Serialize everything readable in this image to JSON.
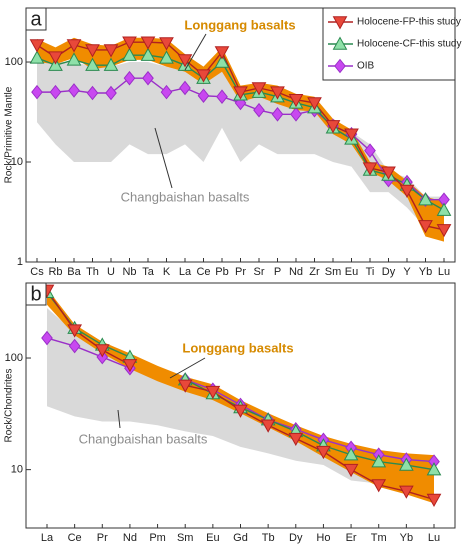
{
  "chart_data": [
    {
      "type": "line",
      "panel": "a",
      "ylabel": "Rock/Primitive Mantle",
      "yscale": "log",
      "ylim": [
        1,
        347
      ],
      "yticks": [
        1,
        10,
        100
      ],
      "legend": "upper right",
      "categories": [
        "Cs",
        "Rb",
        "Ba",
        "Th",
        "U",
        "Nb",
        "Ta",
        "K",
        "La",
        "Ce",
        "Pb",
        "Pr",
        "Sr",
        "P",
        "Nd",
        "Zr",
        "Sm",
        "Eu",
        "Ti",
        "Dy",
        "Y",
        "Yb",
        "Lu"
      ],
      "bands": [
        {
          "name": "Changbaishan basalts",
          "color": "#d9d9d9",
          "label_color": "#8c8c8c",
          "upper": [
            120,
            100,
            100,
            90,
            90,
            100,
            100,
            90,
            80,
            60,
            110,
            45,
            55,
            40,
            38,
            40,
            25,
            20,
            15,
            8,
            7,
            4.5,
            4.5
          ],
          "lower": [
            25,
            15,
            10,
            10,
            10,
            15,
            12,
            12,
            15,
            10,
            22,
            10,
            15,
            12,
            12,
            12,
            10,
            9,
            5,
            5,
            3.5,
            2.2,
            1.8
          ]
        },
        {
          "name": "Longgang basalts",
          "color": "#f08c00",
          "label_color": "#d68a00",
          "upper": [
            170,
            140,
            175,
            150,
            145,
            175,
            175,
            170,
            120,
            90,
            140,
            58,
            62,
            58,
            48,
            45,
            27,
            21,
            10,
            9,
            6.5,
            4.5,
            4
          ],
          "lower": [
            100,
            95,
            110,
            85,
            90,
            105,
            105,
            90,
            80,
            60,
            80,
            40,
            45,
            38,
            33,
            32,
            19,
            15,
            8,
            6.5,
            4.5,
            1.8,
            1.6
          ]
        }
      ],
      "series": [
        {
          "name": "OIB",
          "color": "#9a30c8",
          "marker_fill": "#c848f0",
          "marker": "diamond",
          "values": [
            50,
            50,
            52,
            49,
            49,
            69,
            69,
            50,
            55,
            46,
            45,
            39,
            33,
            30,
            30,
            33,
            23,
            19,
            13,
            6.6,
            6.3,
            4.2,
            4.2
          ]
        },
        {
          "name": "Holocene-CF-this study",
          "color": "#2a8a50",
          "marker_fill": "#8ee0a8",
          "marker": "triangle-up",
          "values": [
            110,
            93,
            105,
            93,
            93,
            117,
            117,
            110,
            93,
            69,
            100,
            47,
            50,
            45,
            39,
            35,
            22,
            17,
            8.3,
            7.4,
            5.9,
            4.2,
            3.3
          ]
        },
        {
          "name": "Holocene-FP-this study",
          "color": "#b02020",
          "marker_fill": "#e8483a",
          "marker": "triangle-down",
          "values": [
            148,
            112,
            148,
            132,
            132,
            158,
            158,
            155,
            105,
            74,
            126,
            50,
            55,
            50,
            42,
            39,
            23,
            19,
            8.7,
            7.9,
            5.2,
            2.3,
            2.1
          ]
        }
      ]
    },
    {
      "type": "line",
      "panel": "b",
      "ylabel": "Rock/Chondrites",
      "yscale": "log",
      "ylim": [
        3,
        470
      ],
      "yticks": [
        10,
        100
      ],
      "categories": [
        "La",
        "Ce",
        "Pr",
        "Nd",
        "Pm",
        "Sm",
        "Eu",
        "Gd",
        "Tb",
        "Dy",
        "Ho",
        "Er",
        "Tm",
        "Yb",
        "Lu"
      ],
      "bands": [
        {
          "name": "Changbaishan basalts",
          "color": "#d9d9d9",
          "label_color": "#8c8c8c",
          "upper": [
            280,
            170,
            115,
            90,
            70,
            55,
            45,
            35,
            27,
            20,
            16,
            12,
            10,
            9,
            9
          ],
          "lower": [
            37,
            30,
            27,
            27,
            25,
            22,
            20,
            16,
            14,
            12,
            11,
            8,
            7.5,
            7.5,
            7
          ]
        },
        {
          "name": "Longgang basalts",
          "color": "#f08c00",
          "label_color": "#d68a00",
          "upper": [
            420,
            200,
            140,
            110,
            85,
            68,
            58,
            42,
            32,
            25,
            20,
            17,
            15,
            14,
            13.5
          ],
          "lower": [
            300,
            160,
            110,
            80,
            62,
            50,
            42,
            32,
            24,
            18,
            13,
            9.5,
            7,
            6,
            5
          ]
        }
      ],
      "series": [
        {
          "name": "OIB",
          "color": "#9a30c8",
          "marker_fill": "#c848f0",
          "marker": "diamond",
          "values": [
            151,
            128,
            102,
            81,
            null,
            64,
            52,
            38,
            28,
            23,
            18.5,
            15.7,
            13.6,
            12.3,
            11.8
          ]
        },
        {
          "name": "Holocene-CF-this study",
          "color": "#2a8a50",
          "marker_fill": "#8ee0a8",
          "marker": "triangle-up",
          "values": [
            388,
            185,
            131,
            102,
            null,
            64,
            48,
            36,
            28,
            22,
            16.4,
            13.6,
            11.8,
            11,
            10
          ]
        },
        {
          "name": "Holocene-FP-this study",
          "color": "#b02020",
          "marker_fill": "#e8483a",
          "marker": "triangle-down",
          "values": [
            404,
            178,
            118,
            87,
            null,
            57,
            50,
            34,
            25,
            19,
            14.5,
            10,
            7.3,
            6.4,
            5.4
          ]
        }
      ]
    }
  ]
}
